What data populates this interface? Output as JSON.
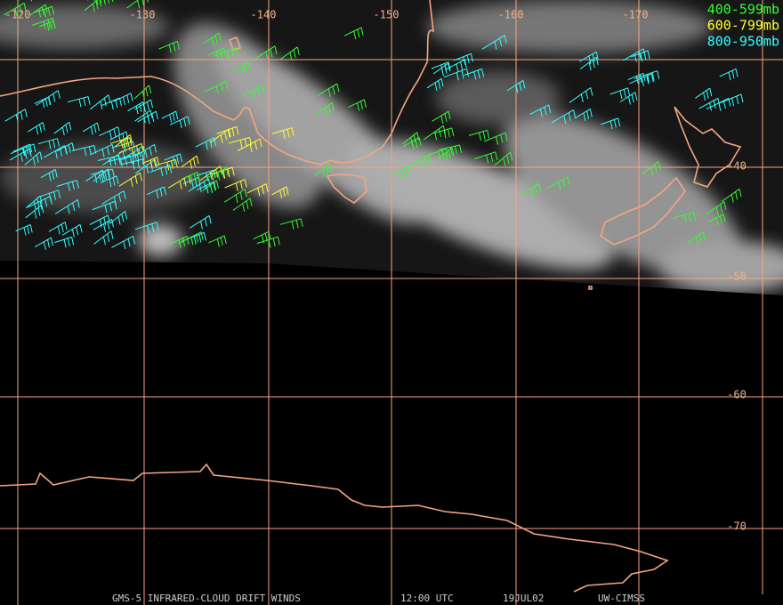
{
  "map": {
    "longitude_labels": [
      -120,
      -130,
      -140,
      -150,
      -160,
      -170
    ],
    "latitude_labels": [
      -40,
      -50,
      -60,
      -70
    ],
    "legend": [
      {
        "label": "400-599mb",
        "color": "#33ff33"
      },
      {
        "label": "600-799mb",
        "color": "#ffff33"
      },
      {
        "label": "800-950mb",
        "color": "#33ffff"
      }
    ],
    "footer": {
      "product": "GMS-5 INFRARED-CLOUD DRIFT WINDS",
      "time": "12:00 UTC",
      "date": "19JUL02",
      "source": "UW-CIMSS"
    }
  }
}
